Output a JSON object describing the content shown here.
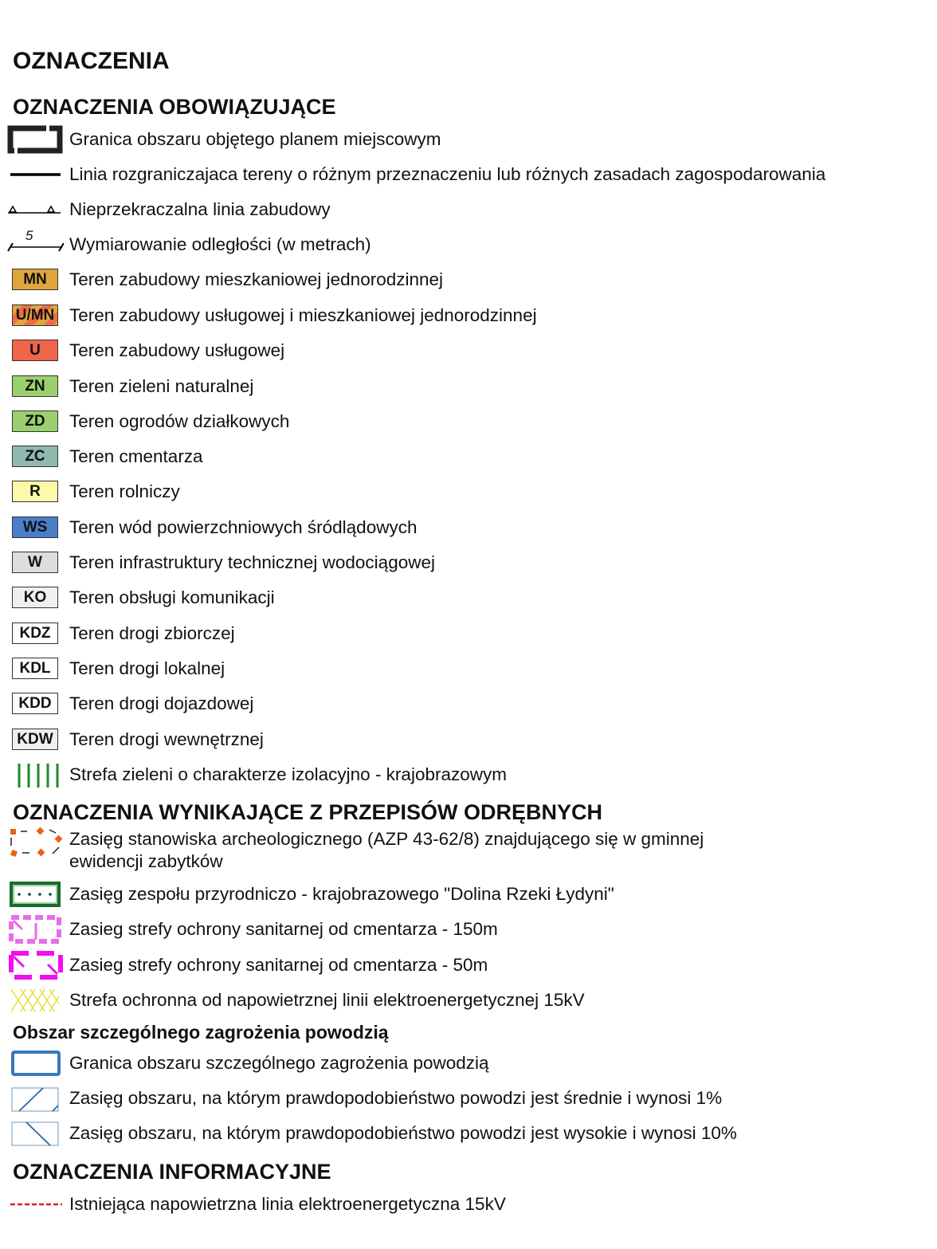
{
  "title": "OZNACZENIA",
  "sections": {
    "binding": "OZNACZENIA OBOWIĄZUJĄCE",
    "separate_regulations": "OZNACZENIA WYNIKAJĄCE Z PRZEPISÓW ODRĘBNYCH",
    "flood": "Obszar szczególnego zagrożenia powodzią",
    "informative": "OZNACZENIA INFORMACYJNE"
  },
  "items": [
    {
      "icon": "plan-boundary-icon",
      "label": "Granica obszaru objętego planem miejscowym"
    },
    {
      "icon": "dividing-line-icon",
      "label": "Linia rozgraniczajaca tereny o różnym przeznaczeniu lub różnych zasadach zagospodarowania"
    },
    {
      "icon": "building-line-icon",
      "label": "Nieprzekraczalna linia zabudowy"
    },
    {
      "icon": "dimension-icon",
      "dimension_value": "5",
      "label": "Wymiarowanie odległości (w metrach)"
    },
    {
      "icon": "swatch",
      "code": "MN",
      "color": "#E0A53C",
      "label": "Teren zabudowy mieszkaniowej jednorodzinnej"
    },
    {
      "icon": "swatch-striped",
      "code": "U/MN",
      "color": "#E0A53C",
      "stripe": "#F06A45",
      "label": "Teren zabudowy usługowej i mieszkaniowej jednorodzinnej"
    },
    {
      "icon": "swatch",
      "code": "U",
      "color": "#F0654A",
      "label": "Teren zabudowy usługowej"
    },
    {
      "icon": "swatch",
      "code": "ZN",
      "color": "#9BD06E",
      "label": "Teren zieleni naturalnej"
    },
    {
      "icon": "swatch",
      "code": "ZD",
      "color": "#9BD06E",
      "label": "Teren ogrodów działkowych"
    },
    {
      "icon": "swatch",
      "code": "ZC",
      "color": "#8FB9AE",
      "label": "Teren cmentarza"
    },
    {
      "icon": "swatch",
      "code": "R",
      "color": "#FDF9A8",
      "label": "Teren rolniczy"
    },
    {
      "icon": "swatch",
      "code": "WS",
      "color": "#4A7EC8",
      "label": "Teren wód powierzchniowych śródlądowych"
    },
    {
      "icon": "swatch",
      "code": "W",
      "color": "#DDDDDD",
      "label": "Teren infrastruktury technicznej wodociągowej"
    },
    {
      "icon": "swatch",
      "code": "KO",
      "color": "#EFEFEF",
      "label": "Teren obsługi komunikacji"
    },
    {
      "icon": "swatch",
      "code": "KDZ",
      "color": "#FFFFFF",
      "label": "Teren drogi zbiorczej"
    },
    {
      "icon": "swatch",
      "code": "KDL",
      "color": "#FFFFFF",
      "label": "Teren drogi lokalnej"
    },
    {
      "icon": "swatch",
      "code": "KDD",
      "color": "#FFFFFF",
      "label": "Teren drogi dojazdowej"
    },
    {
      "icon": "swatch",
      "code": "KDW",
      "color": "#EFEFEF",
      "label": "Teren drogi wewnętrznej"
    },
    {
      "icon": "green-strips-icon",
      "label": "Strefa zieleni o charakterze izolacyjno - krajobrazowym"
    },
    {
      "icon": "archaeology-icon",
      "label": "Zasięg stanowiska archeologicznego (AZP 43-62/8) znajdującego się w gminnej",
      "label2": "ewidencji zabytków"
    },
    {
      "icon": "nature-complex-icon",
      "label": "Zasięg zespołu przyrodniczo - krajobrazowego \"Dolina Rzeki Łydyni\""
    },
    {
      "icon": "cemetery-150-icon",
      "label": "Zasieg strefy ochrony sanitarnej od cmentarza - 150m"
    },
    {
      "icon": "cemetery-50-icon",
      "label": "Zasieg strefy ochrony sanitarnej od cmentarza - 50m"
    },
    {
      "icon": "powerline-zone-icon",
      "label": "Strefa ochronna od napowietrznej linii elektroenergetycznej 15kV"
    },
    {
      "icon": "flood-boundary-icon",
      "label": "Granica obszaru szczególnego zagrożenia powodzią"
    },
    {
      "icon": "flood-1pct-icon",
      "label": "Zasięg obszaru, na którym prawdopodobieństwo powodzi jest średnie i wynosi 1%"
    },
    {
      "icon": "flood-10pct-icon",
      "label": "Zasięg obszaru, na którym prawdopodobieństwo powodzi jest wysokie i wynosi 10%"
    },
    {
      "icon": "powerline-icon",
      "label": "Istniejąca napowietrzna linia elektroenergetyczna 15kV"
    }
  ]
}
